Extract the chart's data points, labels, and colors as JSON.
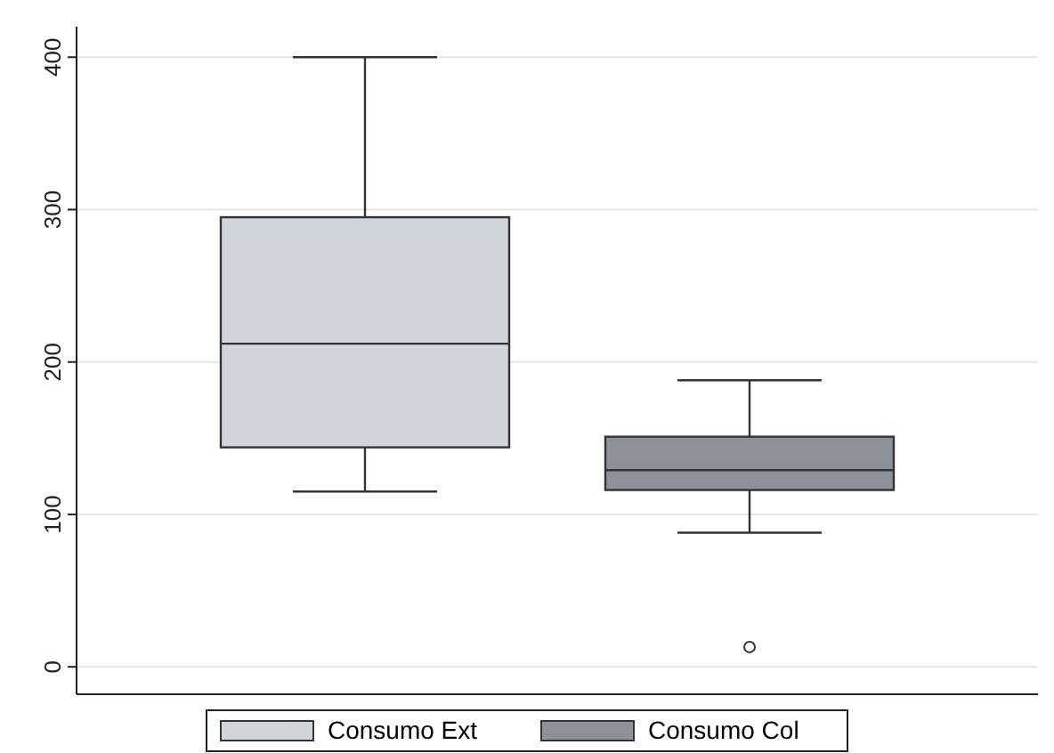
{
  "chart_data": {
    "type": "box",
    "categories": [
      null
    ],
    "ylim": [
      -18,
      420
    ],
    "yticks": [
      0,
      100,
      200,
      300,
      400
    ],
    "grid": "y",
    "legend": "bottom",
    "series": [
      {
        "name": "Consumo Ext",
        "color": "#d0d5db",
        "boxes": [
          {
            "low": 115,
            "q1": 144,
            "median": 212,
            "q3": 295,
            "high": 400
          }
        ]
      },
      {
        "name": "Consumo Col",
        "color": "#8d9199",
        "boxes": [
          {
            "low": 88,
            "q1": 116,
            "median": 129,
            "q3": 151,
            "high": 188,
            "outliers": [
              13
            ]
          }
        ]
      }
    ]
  }
}
